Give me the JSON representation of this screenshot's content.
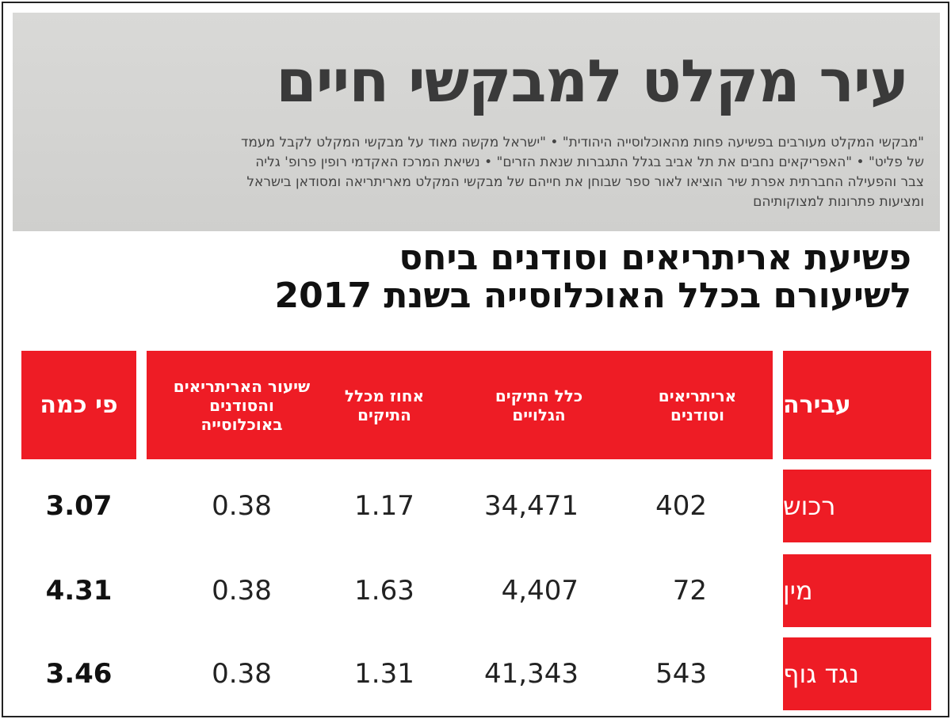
{
  "clipping": {
    "headline": "עיר מקלט למבקשי חיים",
    "paragraph_lines": [
      "\"מבקשי המקלט מעורבים בפשיעה פחות מהאוכלוסייה היהודית\" • \"ישראל מקשה מאוד על מבקשי המקלט לקבל מעמד",
      "של פליט\" • \"האפריקאים נחבים את תל אביב בגלל התגברות שנאת הזרים\" • נשיאת המרכז האקדמי רופין פרופ' גליה",
      "צבר והפעילה החברתית אפרת שיר הוציאו לאור ספר שבוחן את חייהם של מבקשי המקלט מאריתריאה ומסודאן בישראל",
      "ומציעות פתרונות למצוקותיהם"
    ]
  },
  "title": {
    "lines": [
      "פשיעת אריתריאים וסודנים ביחס",
      "לשיעורם בכלל האוכלוסייה בשנת 2017"
    ]
  },
  "table": {
    "headers": [
      "עבירה",
      "אריתריאים וסודנים",
      "כלל התיקים הגלויים",
      "אחוז מכלל התיקים",
      "שיעור האריתריאים והסודנים באוכלוסייה",
      "פי כמה"
    ],
    "rows": [
      [
        "רכוש",
        "402",
        "34,471",
        "1.17",
        "0.38",
        "3.07"
      ],
      [
        "מין",
        "72",
        "4,407",
        "1.63",
        "0.38",
        "4.31"
      ],
      [
        "נגד גוף",
        "543",
        "41,343",
        "1.31",
        "0.38",
        "3.46"
      ]
    ]
  }
}
